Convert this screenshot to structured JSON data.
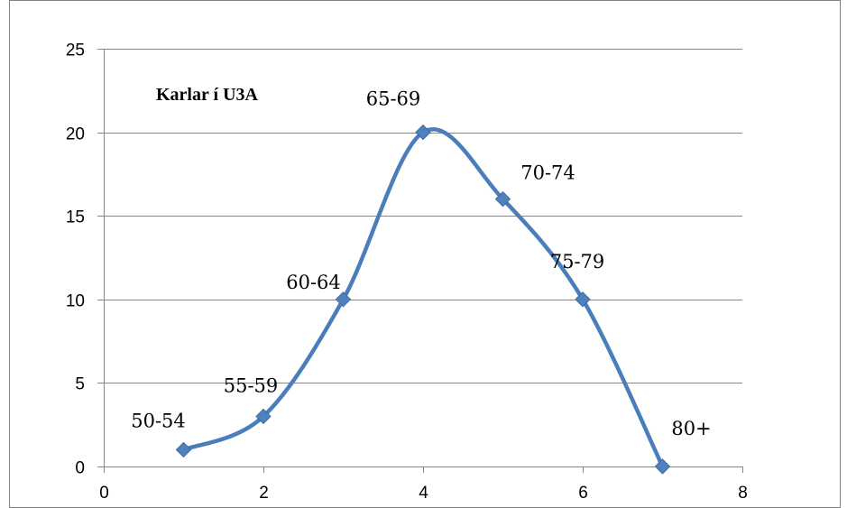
{
  "chart_data": {
    "type": "scatter",
    "title": "Karlar í U3A",
    "xlabel": "",
    "ylabel": "",
    "xlim": [
      0,
      8
    ],
    "ylim": [
      0,
      25
    ],
    "x_ticks": [
      0,
      2,
      4,
      6,
      8
    ],
    "y_ticks": [
      0,
      5,
      10,
      15,
      20,
      25
    ],
    "grid": "horizontal",
    "legend": "none",
    "smooth": true,
    "line_color": "#4a7ebb",
    "marker_color": "#4f81bd",
    "marker": "diamond",
    "series": [
      {
        "points": [
          {
            "x": 1,
            "y": 1,
            "label": "50-54"
          },
          {
            "x": 2,
            "y": 3,
            "label": "55-59"
          },
          {
            "x": 3,
            "y": 10,
            "label": "60-64"
          },
          {
            "x": 4,
            "y": 20,
            "label": "65-69"
          },
          {
            "x": 5,
            "y": 16,
            "label": "70-74"
          },
          {
            "x": 6,
            "y": 10,
            "label": "75-79"
          },
          {
            "x": 7,
            "y": 0,
            "label": "80+"
          }
        ]
      }
    ]
  }
}
